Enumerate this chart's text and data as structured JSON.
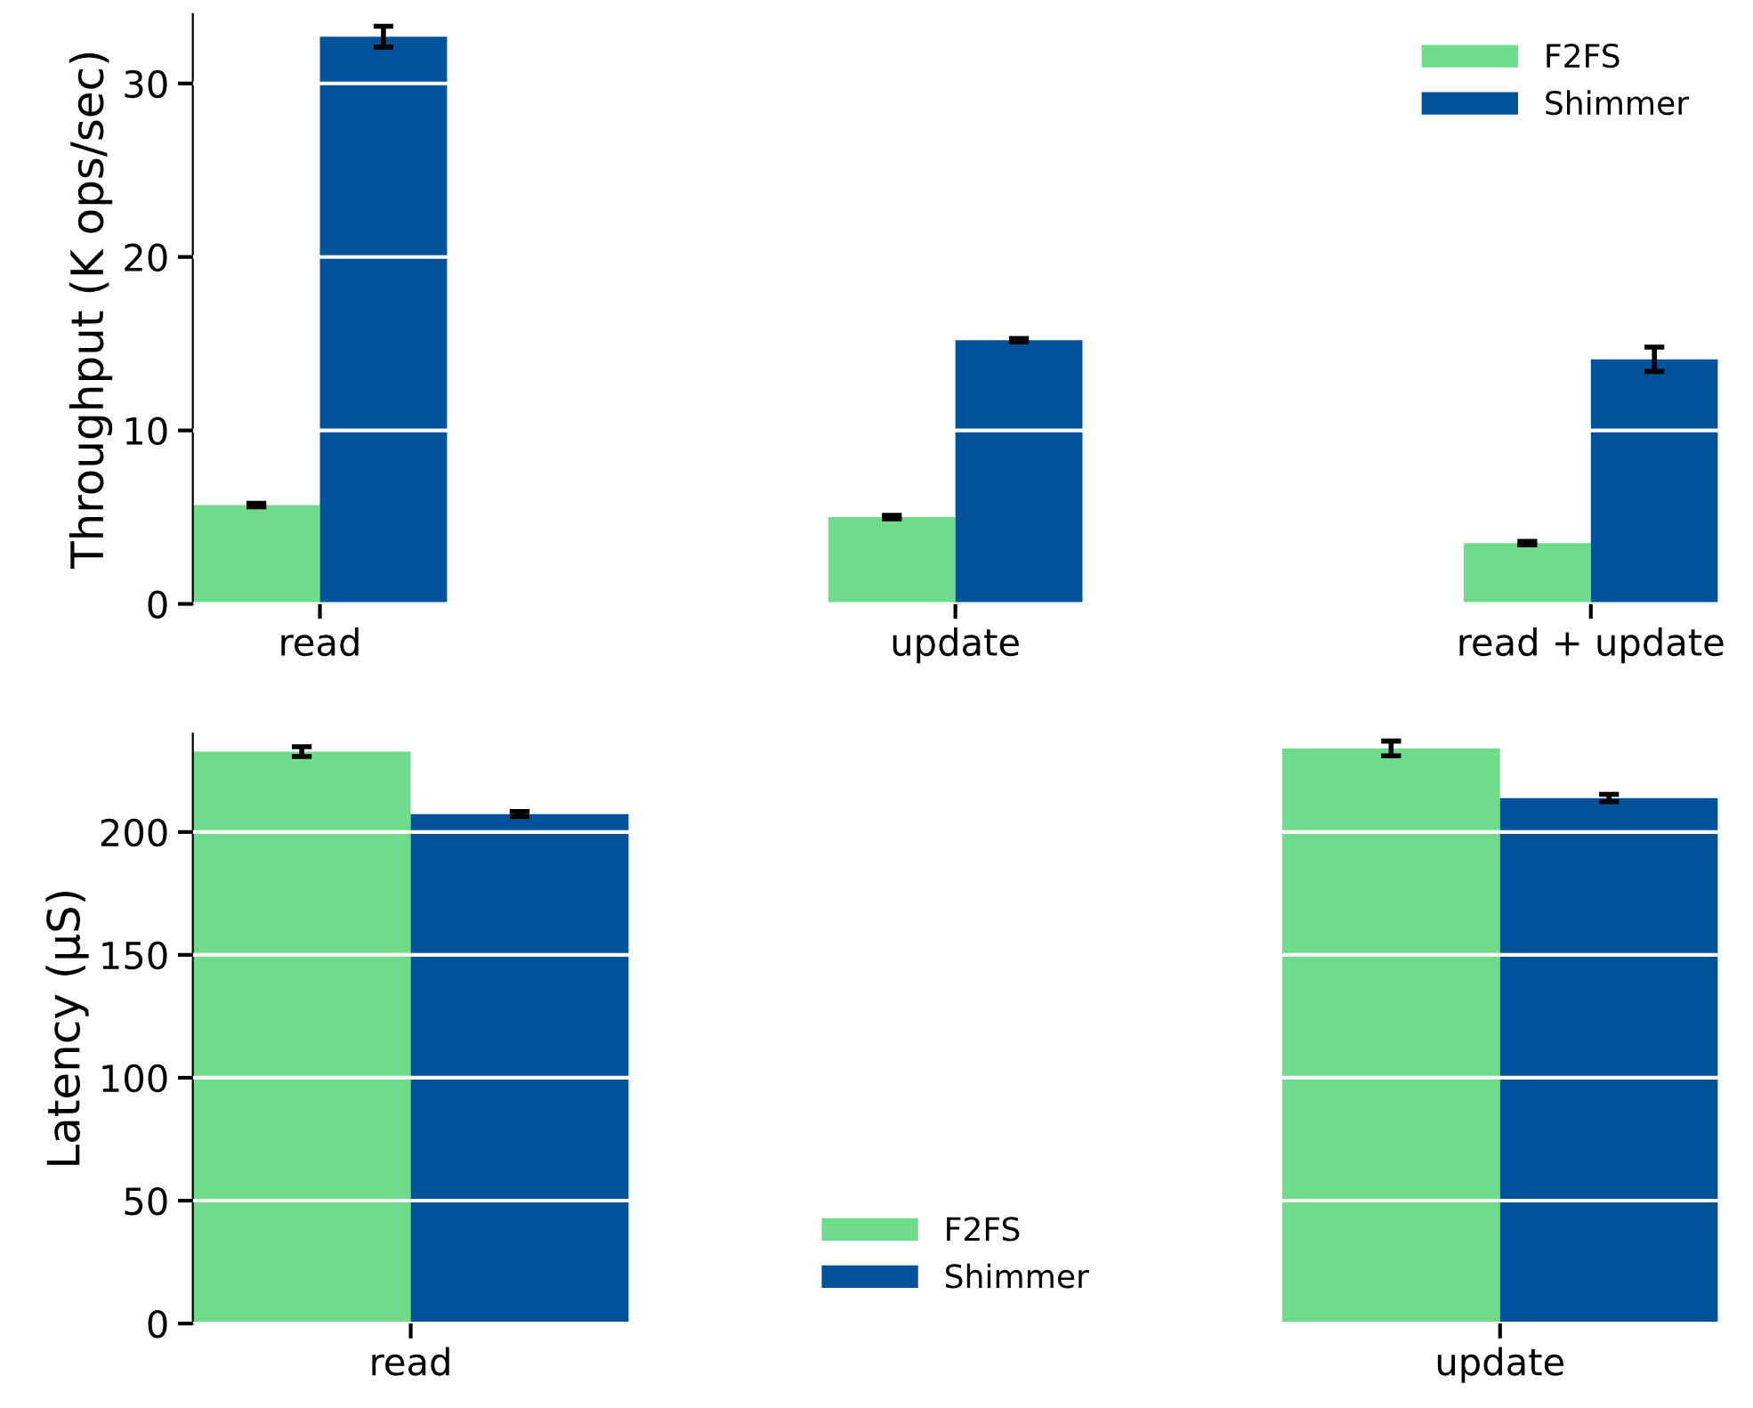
{
  "chart_data": [
    {
      "type": "bar",
      "ylabel": "Throughput (K ops/sec)",
      "categories": [
        "read",
        "update",
        "read + update"
      ],
      "series": [
        {
          "name": "F2FS",
          "color": "#6fdc8c",
          "values": [
            5.7,
            5.0,
            3.5
          ],
          "errors": [
            0.1,
            0.1,
            0.1
          ]
        },
        {
          "name": "Shimmer",
          "color": "#00539a",
          "values": [
            32.7,
            15.2,
            14.1
          ],
          "errors": [
            0.6,
            0.1,
            0.7
          ]
        }
      ],
      "ylim": [
        0,
        34
      ],
      "yticks": [
        0,
        10,
        20,
        30
      ],
      "grid": "y",
      "legend": "top right"
    },
    {
      "type": "bar",
      "ylabel": "Latency (μS)",
      "categories": [
        "read",
        "update"
      ],
      "series": [
        {
          "name": "F2FS",
          "color": "#6fdc8c",
          "values": [
            232.7,
            234
          ],
          "errors": [
            2,
            3
          ]
        },
        {
          "name": "Shimmer",
          "color": "#00539a",
          "values": [
            207.3,
            213.8
          ],
          "errors": [
            1,
            1.5
          ]
        }
      ],
      "ylim": [
        0,
        240
      ],
      "yticks": [
        0,
        50,
        100,
        150,
        200
      ],
      "grid": "y",
      "legend": "bottom"
    }
  ]
}
